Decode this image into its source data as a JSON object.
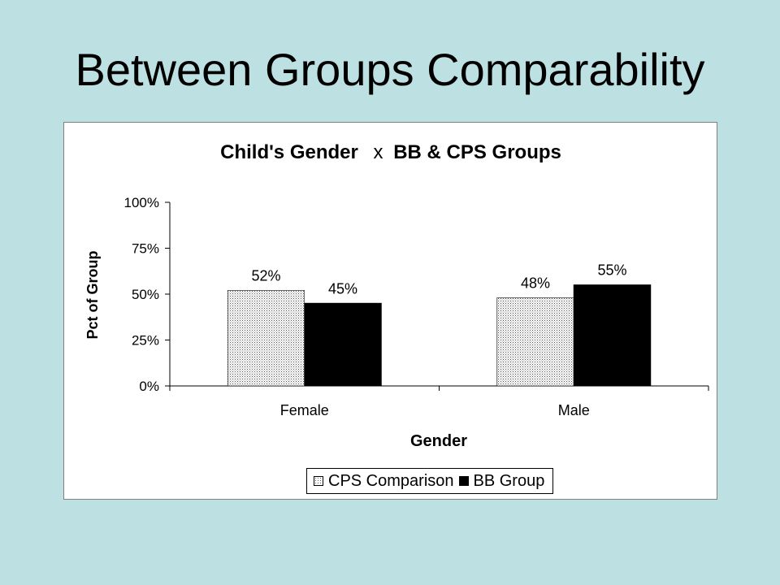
{
  "slide": {
    "title": "Between Groups Comparability"
  },
  "colors": {
    "background": "#bde0e2",
    "cps_fill": "#f2f2f2",
    "bb_fill": "#000000"
  },
  "chart_data": {
    "type": "bar",
    "title_part1": "Child's Gender",
    "title_part2": "x",
    "title_part3": "BB & CPS Groups",
    "xlabel": "Gender",
    "ylabel": "Pct of Group",
    "categories": [
      "Female",
      "Male"
    ],
    "series": [
      {
        "name": "CPS Comparison",
        "values": [
          52,
          48
        ],
        "labels": [
          "52%",
          "48%"
        ],
        "pattern": "dotted"
      },
      {
        "name": "BB Group",
        "values": [
          45,
          55
        ],
        "labels": [
          "45%",
          "55%"
        ],
        "pattern": "solid-black"
      }
    ],
    "ylim": [
      0,
      100
    ],
    "yticks": [
      "0%",
      "25%",
      "50%",
      "75%",
      "100%"
    ],
    "grid": false,
    "legend_position": "bottom"
  }
}
